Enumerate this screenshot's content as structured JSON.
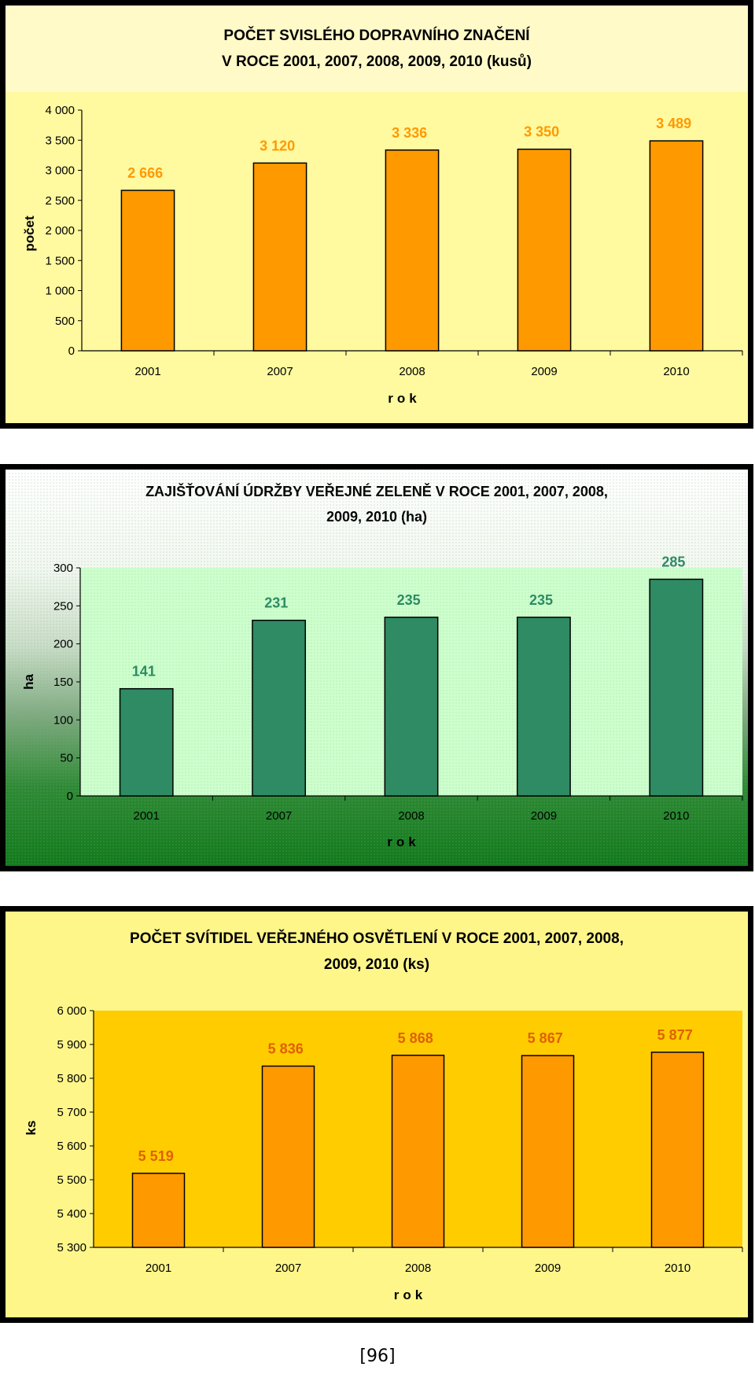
{
  "chart_data": [
    {
      "type": "bar",
      "title": "POČET SVISLÉHO DOPRAVNÍHO ZNAČENÍ",
      "subtitle": "V ROCE 2001, 2007, 2008, 2009, 2010 (kusů)",
      "xlabel": "rok",
      "ylabel": "počet",
      "categories": [
        "2001",
        "2007",
        "2008",
        "2009",
        "2010"
      ],
      "values": [
        2666,
        3120,
        3336,
        3350,
        3489
      ],
      "value_labels": [
        "2 666",
        "3 120",
        "3 336",
        "3 350",
        "3 489"
      ],
      "yticks": [
        "0",
        "500",
        "1 000",
        "1 500",
        "2 000",
        "2 500",
        "3 000",
        "3 500",
        "4 000"
      ],
      "ylim": [
        0,
        4000
      ],
      "grid": false,
      "colors": {
        "bar": "#ff9900",
        "label": "#ff9900",
        "plot_bg": "#fff9a0",
        "frame_bg": "#fff9a0"
      }
    },
    {
      "type": "bar",
      "title": "ZAJIŠŤOVÁNÍ ÚDRŽBY VEŘEJNÉ ZELENĚ V ROCE 2001, 2007, 2008,",
      "subtitle": "2009, 2010 (ha)",
      "xlabel": "rok",
      "ylabel": "ha",
      "categories": [
        "2001",
        "2007",
        "2008",
        "2009",
        "2010"
      ],
      "values": [
        141,
        231,
        235,
        235,
        285
      ],
      "value_labels": [
        "141",
        "231",
        "235",
        "235",
        "285"
      ],
      "yticks": [
        "0",
        "50",
        "100",
        "150",
        "200",
        "250",
        "300"
      ],
      "ylim": [
        0,
        300
      ],
      "grid": false,
      "colors": {
        "bar": "#2e8b63",
        "label": "#2e8b63",
        "plot_bg": "#ccffcc",
        "frame_bg": "#e8f0e6"
      }
    },
    {
      "type": "bar",
      "title": "POČET SVÍTIDEL VEŘEJNÉHO OSVĚTLENÍ V ROCE 2001, 2007, 2008,",
      "subtitle": "2009, 2010 (ks)",
      "xlabel": "rok",
      "ylabel": "ks",
      "categories": [
        "2001",
        "2007",
        "2008",
        "2009",
        "2010"
      ],
      "values": [
        5519,
        5836,
        5868,
        5867,
        5877
      ],
      "value_labels": [
        "5 519",
        "5 836",
        "5 868",
        "5 867",
        "5 877"
      ],
      "yticks": [
        "5 300",
        "5 400",
        "5 500",
        "5 600",
        "5 700",
        "5 800",
        "5 900",
        "6 000"
      ],
      "ylim": [
        5300,
        6000
      ],
      "grid": false,
      "colors": {
        "bar": "#ff9900",
        "label": "#e06000",
        "plot_bg": "#ffcc00",
        "frame_bg": "#fff68a"
      }
    }
  ],
  "footer": {
    "page_number": "[96]"
  }
}
